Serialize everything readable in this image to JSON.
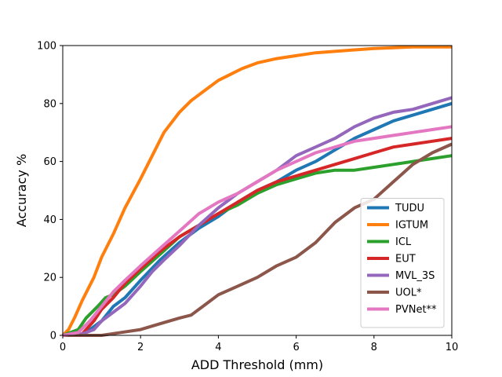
{
  "chart_data": {
    "type": "line",
    "title": "",
    "xlabel": "ADD Threshold (mm)",
    "ylabel": "Accuracy %",
    "xlim": [
      0,
      10
    ],
    "ylim": [
      0,
      100
    ],
    "xticks": [
      "0",
      "2",
      "4",
      "6",
      "8",
      "10"
    ],
    "yticks": [
      "0",
      "20",
      "40",
      "60",
      "80",
      "100"
    ],
    "grid": false,
    "legend_position": "lower-right",
    "series": [
      {
        "name": "TUDU",
        "color": "#1f77b4",
        "x": [
          0,
          0.5,
          0.7,
          1.0,
          1.3,
          1.6,
          2.0,
          2.5,
          3.0,
          3.5,
          4.0,
          4.5,
          5.0,
          5.5,
          6.0,
          6.5,
          7.0,
          7.5,
          8.0,
          8.5,
          9.0,
          9.5,
          10.0
        ],
        "y": [
          0,
          0.5,
          2,
          5,
          10,
          13,
          19,
          26,
          32,
          37,
          41,
          46,
          50,
          53,
          57,
          60,
          64,
          68,
          71,
          74,
          76,
          78,
          80
        ]
      },
      {
        "name": "IGTUM",
        "color": "#ff7f0e",
        "x": [
          0,
          0.15,
          0.3,
          0.5,
          0.8,
          1.0,
          1.3,
          1.6,
          2.0,
          2.3,
          2.6,
          3.0,
          3.3,
          3.6,
          4.0,
          4.3,
          4.6,
          5.0,
          5.5,
          6.0,
          6.5,
          7.0,
          7.5,
          8.0,
          9.0,
          10.0
        ],
        "y": [
          0,
          2,
          6,
          12,
          20,
          27,
          35,
          44,
          54,
          62,
          70,
          77,
          81,
          84,
          88,
          90,
          92,
          94,
          95.5,
          96.5,
          97.5,
          98,
          98.5,
          99,
          99.5,
          99.5
        ]
      },
      {
        "name": "ICL",
        "color": "#2ca02c",
        "x": [
          0,
          0.4,
          0.6,
          0.9,
          1.1,
          1.3,
          1.6,
          2.0,
          2.5,
          3.0,
          3.5,
          4.0,
          4.5,
          5.0,
          5.5,
          6.0,
          6.5,
          7.0,
          7.5,
          8.0,
          8.5,
          9.0,
          9.5,
          10.0
        ],
        "y": [
          0,
          2,
          6,
          10,
          13,
          14,
          17,
          22,
          28,
          34,
          38,
          42,
          45,
          49,
          52,
          54,
          56,
          57,
          57,
          58,
          59,
          60,
          61,
          62
        ]
      },
      {
        "name": "EUT",
        "color": "#d62728",
        "x": [
          0,
          0.5,
          0.8,
          1.0,
          1.3,
          1.6,
          2.0,
          2.5,
          3.0,
          3.5,
          4.0,
          4.5,
          5.0,
          5.5,
          6.0,
          6.5,
          7.0,
          7.5,
          8.0,
          8.5,
          9.0,
          9.5,
          10.0
        ],
        "y": [
          0,
          0.5,
          5,
          9,
          13,
          18,
          23,
          29,
          34,
          38,
          42,
          46,
          50,
          53,
          55,
          57,
          59,
          61,
          63,
          65,
          66,
          67,
          68
        ]
      },
      {
        "name": "MVL_3S",
        "color": "#9467bd",
        "x": [
          0,
          0.5,
          0.8,
          1.0,
          1.3,
          1.6,
          2.0,
          2.3,
          2.6,
          3.0,
          3.5,
          4.0,
          4.5,
          5.0,
          5.5,
          6.0,
          6.5,
          7.0,
          7.5,
          8.0,
          8.5,
          9.0,
          9.5,
          10.0
        ],
        "y": [
          0,
          0.5,
          2,
          5,
          8,
          11,
          17,
          22,
          26,
          31,
          38,
          44,
          49,
          53,
          57,
          62,
          65,
          68,
          72,
          75,
          77,
          78,
          80,
          82
        ]
      },
      {
        "name": "UOL*",
        "color": "#8c564b",
        "x": [
          0,
          1.0,
          1.5,
          2.0,
          2.5,
          3.0,
          3.3,
          3.6,
          4.0,
          4.5,
          5.0,
          5.5,
          6.0,
          6.5,
          7.0,
          7.5,
          8.0,
          8.5,
          9.0,
          9.5,
          10.0
        ],
        "y": [
          0,
          0,
          1,
          2,
          4,
          6,
          7,
          10,
          14,
          17,
          20,
          24,
          27,
          32,
          39,
          44,
          47,
          53,
          59,
          63,
          66
        ]
      },
      {
        "name": "PVNet**",
        "color": "#e377c2",
        "x": [
          0,
          0.4,
          0.7,
          1.0,
          1.3,
          1.6,
          2.0,
          2.5,
          3.0,
          3.5,
          4.0,
          4.5,
          5.0,
          5.5,
          6.0,
          6.5,
          7.0,
          7.5,
          8.0,
          8.5,
          9.0,
          9.5,
          10.0
        ],
        "y": [
          0,
          1,
          5,
          10,
          15,
          19,
          24,
          30,
          36,
          42,
          46,
          49,
          53,
          57,
          60,
          63,
          65,
          67,
          68,
          69,
          70,
          71,
          72
        ]
      }
    ]
  }
}
